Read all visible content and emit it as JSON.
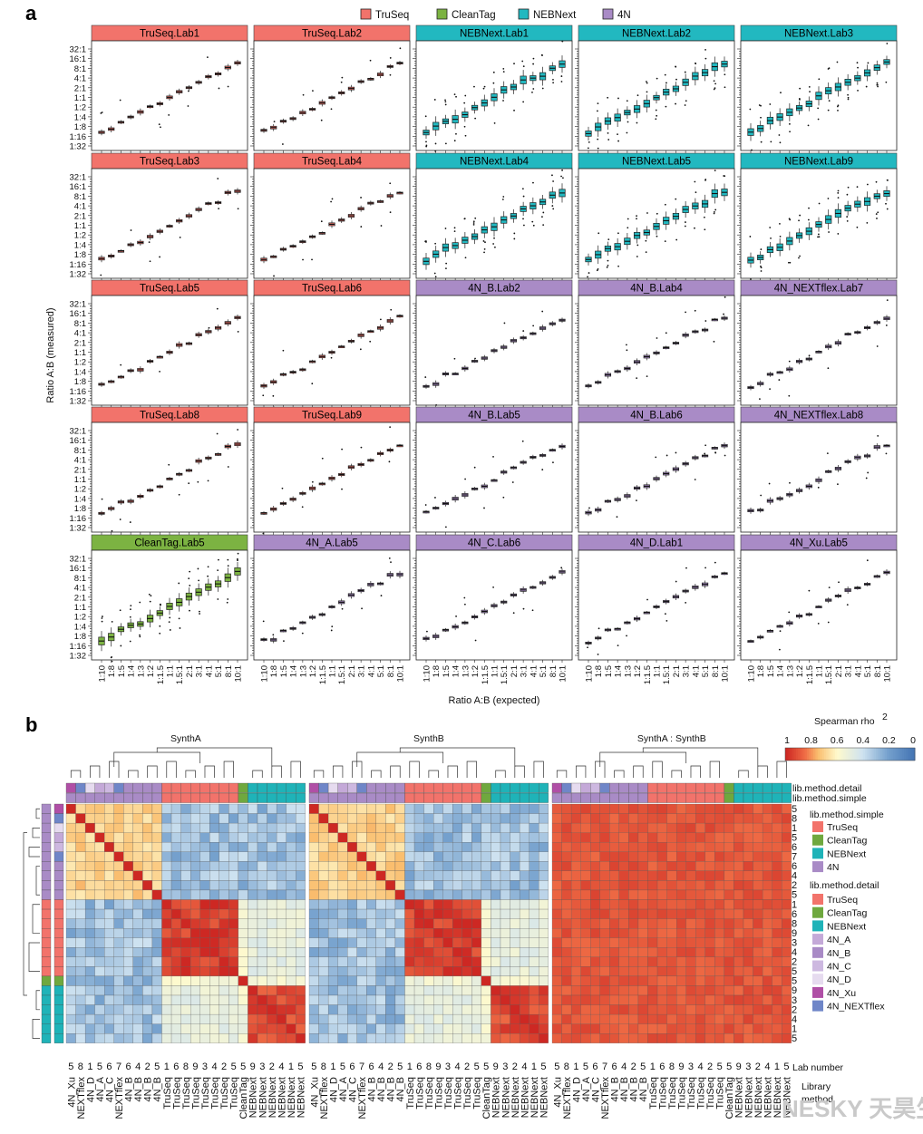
{
  "panel_a": {
    "label": "a",
    "legend": [
      {
        "name": "TruSeq",
        "color": "#f2736b"
      },
      {
        "name": "CleanTag",
        "color": "#7cb342"
      },
      {
        "name": "NEBNext",
        "color": "#22b8c0"
      },
      {
        "name": "4N",
        "color": "#a98bc6"
      }
    ],
    "ylabel": "Ratio A:B (measured)",
    "xlabel": "Ratio A:B (expected)",
    "y_ticks": [
      "32:1",
      "16:1",
      "8:1",
      "4:1",
      "2:1",
      "1:1",
      "1:2",
      "1:4",
      "1:8",
      "1:16",
      "1:32"
    ],
    "x_ticks": [
      "1:10",
      "1:8",
      "1:5",
      "1:4",
      "1:3",
      "1:2",
      "1:1.5",
      "1:1",
      "1.5:1",
      "2:1",
      "3:1",
      "4:1",
      "5:1",
      "8:1",
      "10:1"
    ],
    "panels": [
      {
        "title": "TruSeq.Lab1",
        "method": "TruSeq"
      },
      {
        "title": "TruSeq.Lab2",
        "method": "TruSeq"
      },
      {
        "title": "NEBNext.Lab1",
        "method": "NEBNext"
      },
      {
        "title": "NEBNext.Lab2",
        "method": "NEBNext"
      },
      {
        "title": "NEBNext.Lab3",
        "method": "NEBNext"
      },
      {
        "title": "TruSeq.Lab3",
        "method": "TruSeq"
      },
      {
        "title": "TruSeq.Lab4",
        "method": "TruSeq"
      },
      {
        "title": "NEBNext.Lab4",
        "method": "NEBNext"
      },
      {
        "title": "NEBNext.Lab5",
        "method": "NEBNext"
      },
      {
        "title": "NEBNext.Lab9",
        "method": "NEBNext"
      },
      {
        "title": "TruSeq.Lab5",
        "method": "TruSeq"
      },
      {
        "title": "TruSeq.Lab6",
        "method": "TruSeq"
      },
      {
        "title": "4N_B.Lab2",
        "method": "4N"
      },
      {
        "title": "4N_B.Lab4",
        "method": "4N"
      },
      {
        "title": "4N_NEXTflex.Lab7",
        "method": "4N"
      },
      {
        "title": "TruSeq.Lab8",
        "method": "TruSeq"
      },
      {
        "title": "TruSeq.Lab9",
        "method": "TruSeq"
      },
      {
        "title": "4N_B.Lab5",
        "method": "4N"
      },
      {
        "title": "4N_B.Lab6",
        "method": "4N"
      },
      {
        "title": "4N_NEXTflex.Lab8",
        "method": "4N"
      },
      {
        "title": "CleanTag.Lab5",
        "method": "CleanTag"
      },
      {
        "title": "4N_A.Lab5",
        "method": "4N"
      },
      {
        "title": "4N_C.Lab6",
        "method": "4N"
      },
      {
        "title": "4N_D.Lab1",
        "method": "4N"
      },
      {
        "title": "4N_Xu.Lab5",
        "method": "4N"
      }
    ]
  },
  "panel_b": {
    "label": "b",
    "block_titles": [
      "SynthA",
      "SynthB",
      "SynthA : SynthB"
    ],
    "colorbar": {
      "title": "Spearman rho",
      "superscript": "2",
      "ticks": [
        "1",
        "0.8",
        "0.6",
        "0.4",
        "0.2",
        "0"
      ]
    },
    "annotation_row_labels": [
      "lib.method.detail",
      "lib.method.simple"
    ],
    "legend_simple": {
      "title": "lib.method.simple",
      "items": [
        {
          "name": "TruSeq",
          "color": "#f2736b"
        },
        {
          "name": "CleanTag",
          "color": "#6fa83e"
        },
        {
          "name": "NEBNext",
          "color": "#1fb3b8"
        },
        {
          "name": "4N",
          "color": "#a98bc6"
        }
      ]
    },
    "legend_detail": {
      "title": "lib.method.detail",
      "items": [
        {
          "name": "TruSeq",
          "color": "#f2736b"
        },
        {
          "name": "CleanTag",
          "color": "#6fa83e"
        },
        {
          "name": "NEBNext",
          "color": "#1fb3b8"
        },
        {
          "name": "4N_A",
          "color": "#c4a9d8"
        },
        {
          "name": "4N_B",
          "color": "#a98bc6"
        },
        {
          "name": "4N_C",
          "color": "#cdb8e0"
        },
        {
          "name": "4N_D",
          "color": "#e6dbef"
        },
        {
          "name": "4N_Xu",
          "color": "#b04fa6"
        },
        {
          "name": "4N_NEXTflex",
          "color": "#6f86c8"
        }
      ]
    },
    "lab_numbers": [
      "5",
      "8",
      "1",
      "5",
      "6",
      "7",
      "6",
      "4",
      "2",
      "5",
      "1",
      "6",
      "8",
      "9",
      "3",
      "4",
      "2",
      "5",
      "5",
      "9",
      "3",
      "2",
      "4",
      "1",
      "5"
    ],
    "methods": [
      "4N_Xu",
      "NEXTflex",
      "4N_D",
      "4N_A",
      "4N_C",
      "NEXTflex",
      "4N_B",
      "4N_B",
      "4N_B",
      "4N_B",
      "TruSeq",
      "TruSeq",
      "TruSeq",
      "TruSeq",
      "TruSeq",
      "TruSeq",
      "TruSeq",
      "TruSeq",
      "CleanTag",
      "NEBNext",
      "NEBNext",
      "NEBNext",
      "NEBNext",
      "NEBNext",
      "NEBNext"
    ],
    "lab_number_title": "Lab number",
    "library_method_title": "Library\nmethod"
  },
  "watermark": "NESKY 天昊生物",
  "chart_data": [
    {
      "type": "scatter",
      "title": "",
      "xlabel": "Ratio A:B (expected)",
      "ylabel": "Ratio A:B (measured)",
      "x": [
        "1:10",
        "1:8",
        "1:5",
        "1:4",
        "1:3",
        "1:2",
        "1:1.5",
        "1:1",
        "1.5:1",
        "2:1",
        "3:1",
        "4:1",
        "5:1",
        "8:1",
        "10:1"
      ],
      "series": [
        {
          "name": "TruSeq",
          "values": [
            0.1,
            0.125,
            0.2,
            0.25,
            0.333,
            0.5,
            0.667,
            1,
            1.5,
            2,
            3,
            4,
            5,
            8,
            10
          ]
        },
        {
          "name": "CleanTag",
          "values": [
            0.1,
            0.125,
            0.2,
            0.25,
            0.333,
            0.5,
            0.667,
            1,
            1.5,
            2,
            3,
            4,
            5,
            8,
            10
          ]
        },
        {
          "name": "NEBNext",
          "values": [
            0.1,
            0.125,
            0.2,
            0.25,
            0.333,
            0.5,
            0.667,
            1,
            1.5,
            2,
            3,
            4,
            5,
            8,
            10
          ]
        },
        {
          "name": "4N",
          "values": [
            0.1,
            0.125,
            0.2,
            0.25,
            0.333,
            0.5,
            0.667,
            1,
            1.5,
            2,
            3,
            4,
            5,
            8,
            10
          ]
        }
      ],
      "ylim": [
        "1:32",
        "32:1"
      ],
      "log_scale": true,
      "grid": false,
      "legend": "top"
    },
    {
      "type": "heatmap",
      "title": "",
      "blocks": [
        "SynthA",
        "SynthB",
        "SynthA : SynthB"
      ],
      "colorbar_range": [
        1,
        0
      ],
      "groups": [
        {
          "name": "4N",
          "rows": 10,
          "within": 0.7,
          "between": 0.25
        },
        {
          "name": "TruSeq",
          "rows": 8,
          "within": 0.95,
          "between": 0.4
        },
        {
          "name": "CleanTag",
          "rows": 1,
          "within": 1,
          "between": 0.5
        },
        {
          "name": "NEBNext",
          "rows": 6,
          "within": 0.92,
          "between": 0.5
        }
      ],
      "cross_block_rho2": 0.9
    }
  ]
}
